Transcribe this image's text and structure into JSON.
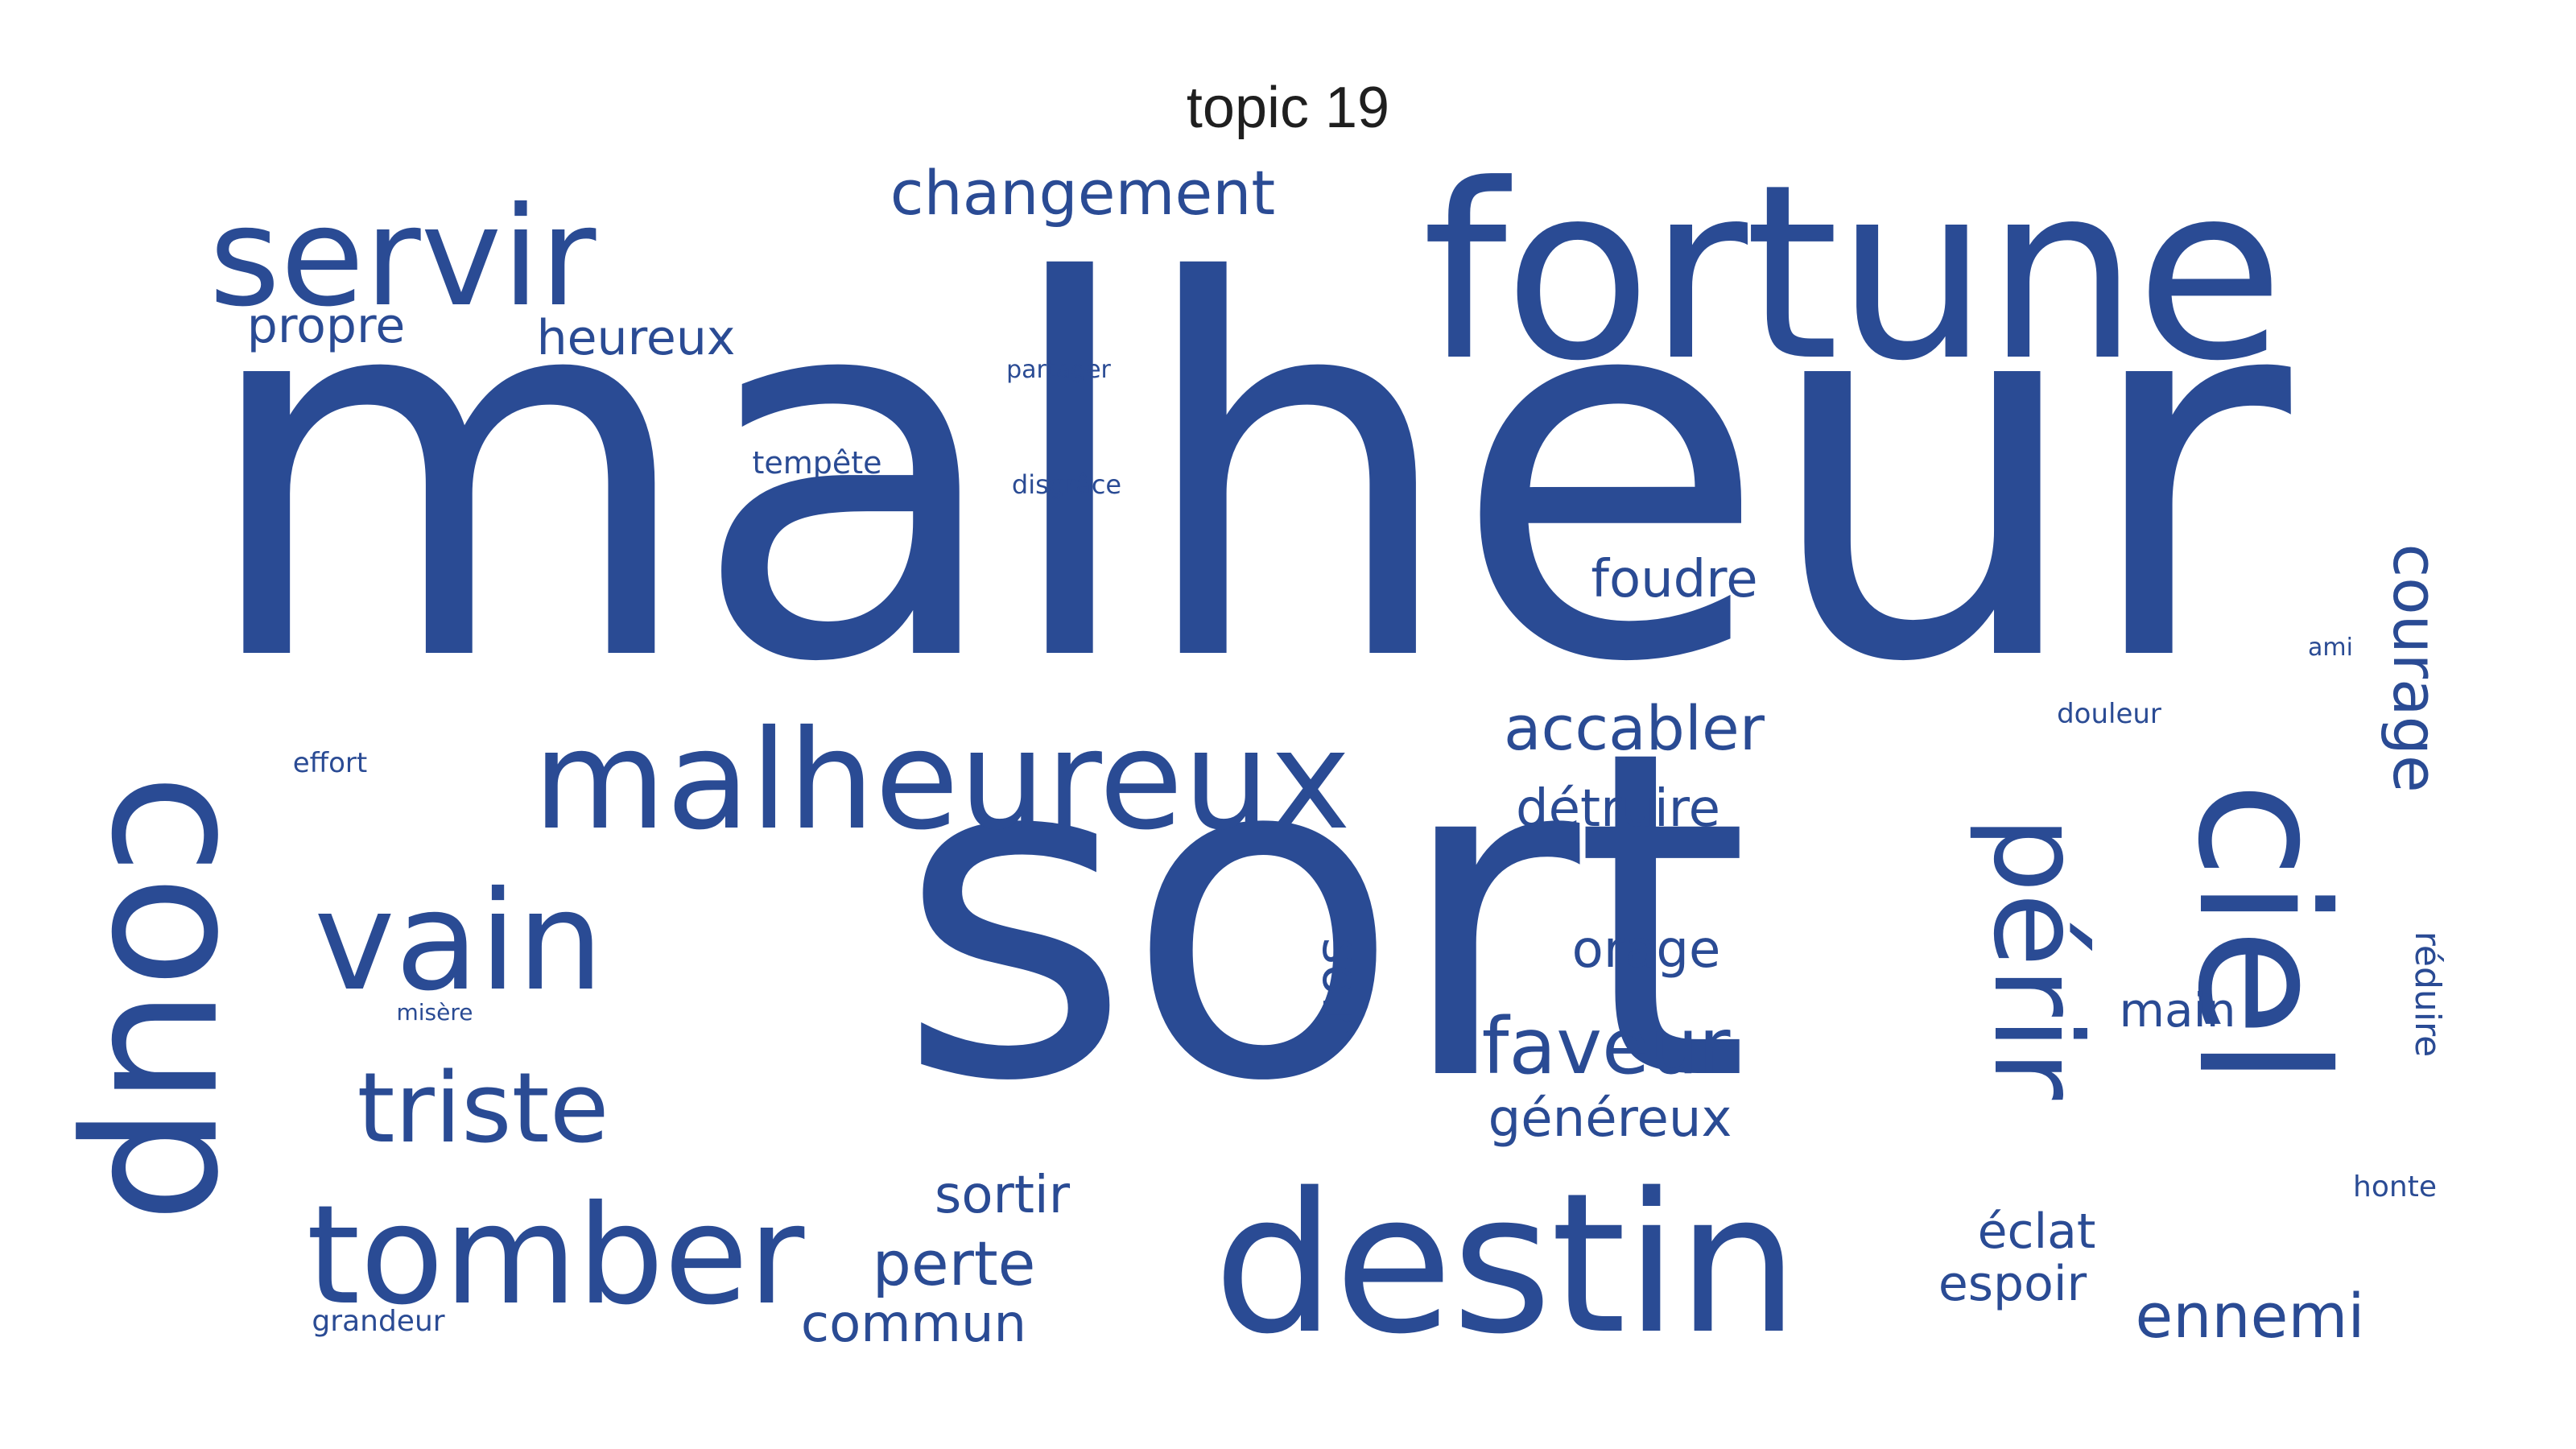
{
  "title": "topic 19",
  "colors": {
    "word": "#2a4b94",
    "title": "#1f1f1f",
    "background": "#ffffff"
  },
  "words": [
    "malheur",
    "sort",
    "fortune",
    "destin",
    "coup",
    "ciel",
    "servir",
    "malheureux",
    "vain",
    "tomber",
    "triste",
    "périr",
    "changement",
    "courage",
    "faveur",
    "accabler",
    "heureux",
    "propre",
    "foudre",
    "détruire",
    "soin",
    "orage",
    "perte",
    "sortir",
    "commun",
    "généreux",
    "main",
    "éclat",
    "espoir",
    "ennemi",
    "partager",
    "tempête",
    "disgrâce",
    "effort",
    "misère",
    "grandeur",
    "douleur",
    "ami",
    "réduire",
    "honte"
  ]
}
